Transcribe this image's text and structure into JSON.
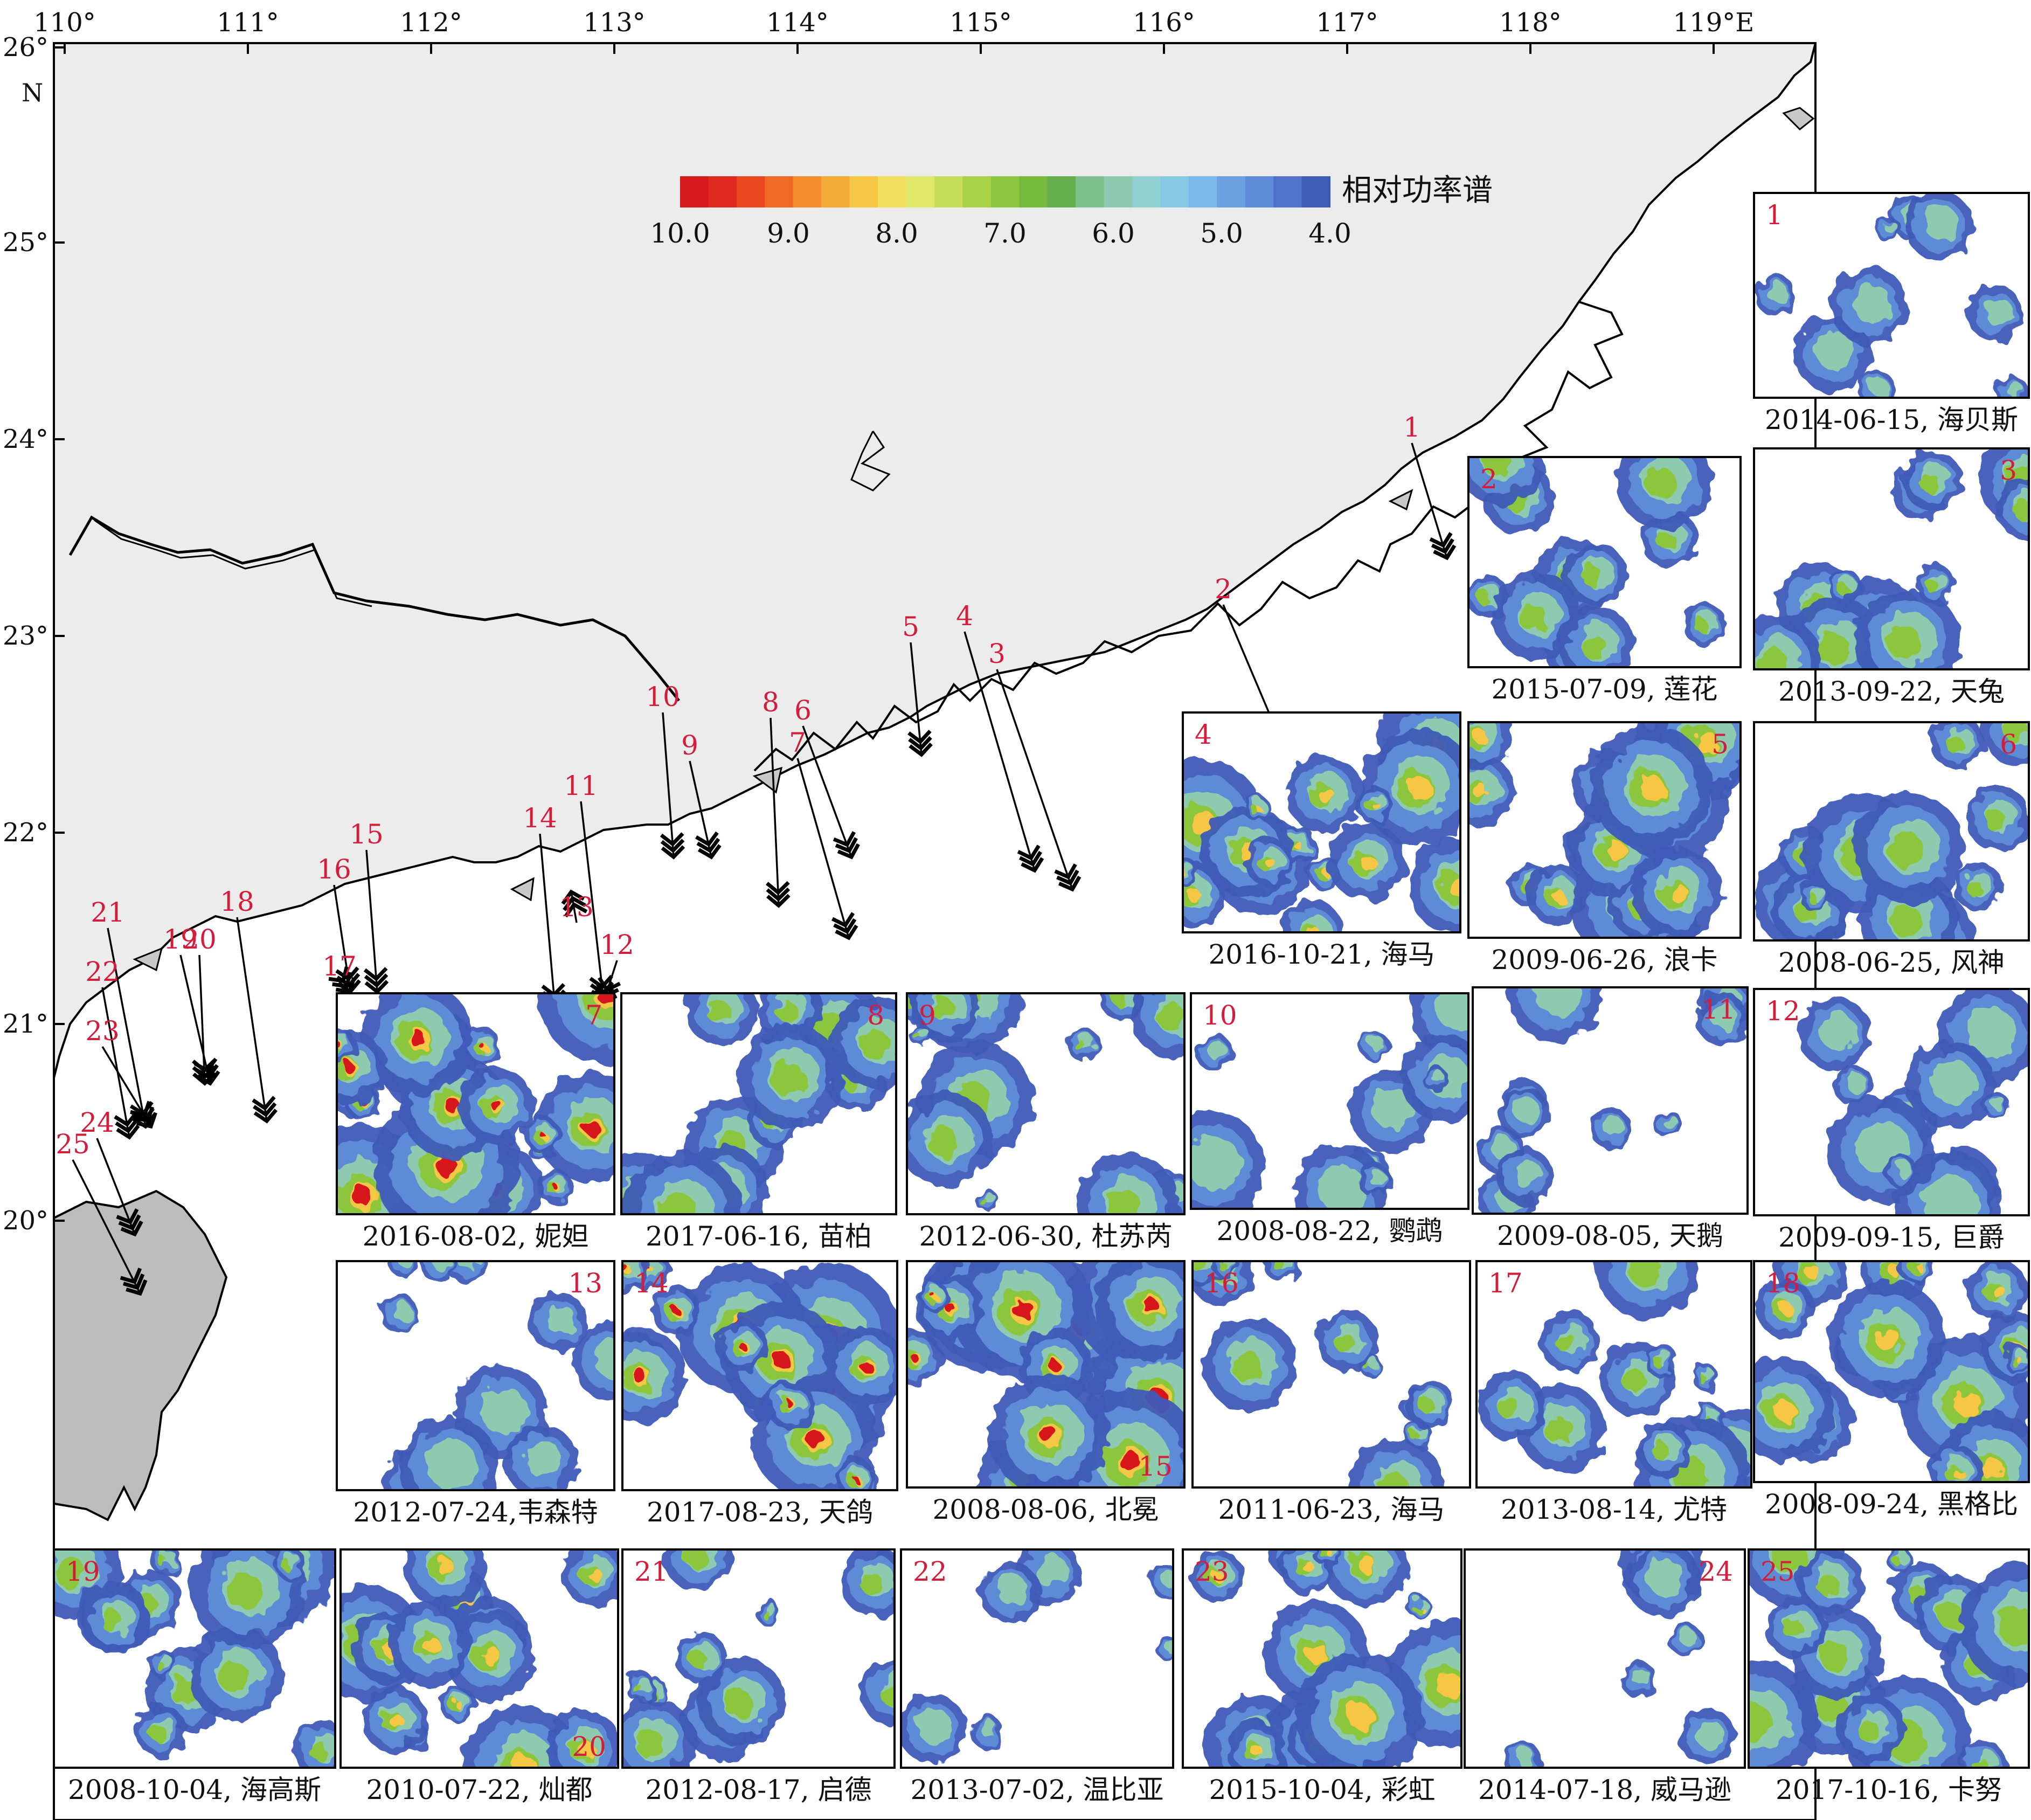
{
  "map": {
    "lon_ticks": [
      "110°",
      "111°",
      "112°",
      "113°",
      "114°",
      "115°",
      "116°",
      "117°",
      "118°",
      "119°E"
    ],
    "lat_ticks": [
      "26°",
      "25°",
      "24°",
      "23°",
      "22°",
      "21°",
      "20°"
    ],
    "lat_unit": "N"
  },
  "colorbar": {
    "title": "相对功率谱",
    "tick_labels": [
      "10.0",
      "9.0",
      "8.0",
      "7.0",
      "6.0",
      "5.0",
      "4.0"
    ],
    "colors": [
      "#d7191c",
      "#e12a1f",
      "#e8461f",
      "#ef6a22",
      "#f38c2c",
      "#f4ab36",
      "#f6c744",
      "#f2df5c",
      "#dfe86a",
      "#c5df58",
      "#a9d247",
      "#8cc63e",
      "#75ba3b",
      "#63b04a",
      "#7ec18d",
      "#8dcab0",
      "#8fd1d3",
      "#88c9e6",
      "#79b8e8",
      "#6aa2e1",
      "#5d8bd6",
      "#4f73c9",
      "#3f5bb8"
    ]
  },
  "panels": [
    {
      "num": "1",
      "caption": "2014-06-15, 海贝斯"
    },
    {
      "num": "2",
      "caption": "2015-07-09, 莲花"
    },
    {
      "num": "3",
      "caption": "2013-09-22, 天兔"
    },
    {
      "num": "4",
      "caption": "2016-10-21, 海马"
    },
    {
      "num": "5",
      "caption": "2009-06-26, 浪卡"
    },
    {
      "num": "6",
      "caption": "2008-06-25, 风神"
    },
    {
      "num": "7",
      "caption": "2016-08-02, 妮妲"
    },
    {
      "num": "8",
      "caption": "2017-06-16, 苗柏"
    },
    {
      "num": "9",
      "caption": "2012-06-30, 杜苏芮"
    },
    {
      "num": "10",
      "caption": "2008-08-22, 鹦鹉"
    },
    {
      "num": "11",
      "caption": "2009-08-05, 天鹅"
    },
    {
      "num": "12",
      "caption": "2009-09-15, 巨爵"
    },
    {
      "num": "13",
      "caption": "2012-07-24,韦森特"
    },
    {
      "num": "14",
      "caption": "2017-08-23, 天鸽"
    },
    {
      "num": "15",
      "caption": "2008-08-06, 北冕"
    },
    {
      "num": "16",
      "caption": "2011-06-23, 海马"
    },
    {
      "num": "17",
      "caption": "2013-08-14, 尤特"
    },
    {
      "num": "18",
      "caption": "2008-09-24, 黑格比"
    },
    {
      "num": "19",
      "caption": "2008-10-04, 海高斯"
    },
    {
      "num": "20",
      "caption": "2010-07-22, 灿都"
    },
    {
      "num": "21",
      "caption": "2012-08-17, 启德"
    },
    {
      "num": "22",
      "caption": "2013-07-02, 温比亚"
    },
    {
      "num": "23",
      "caption": "2015-10-04, 彩虹"
    },
    {
      "num": "24",
      "caption": "2014-07-18, 威马逊"
    },
    {
      "num": "25",
      "caption": "2017-10-16, 卡努"
    }
  ]
}
